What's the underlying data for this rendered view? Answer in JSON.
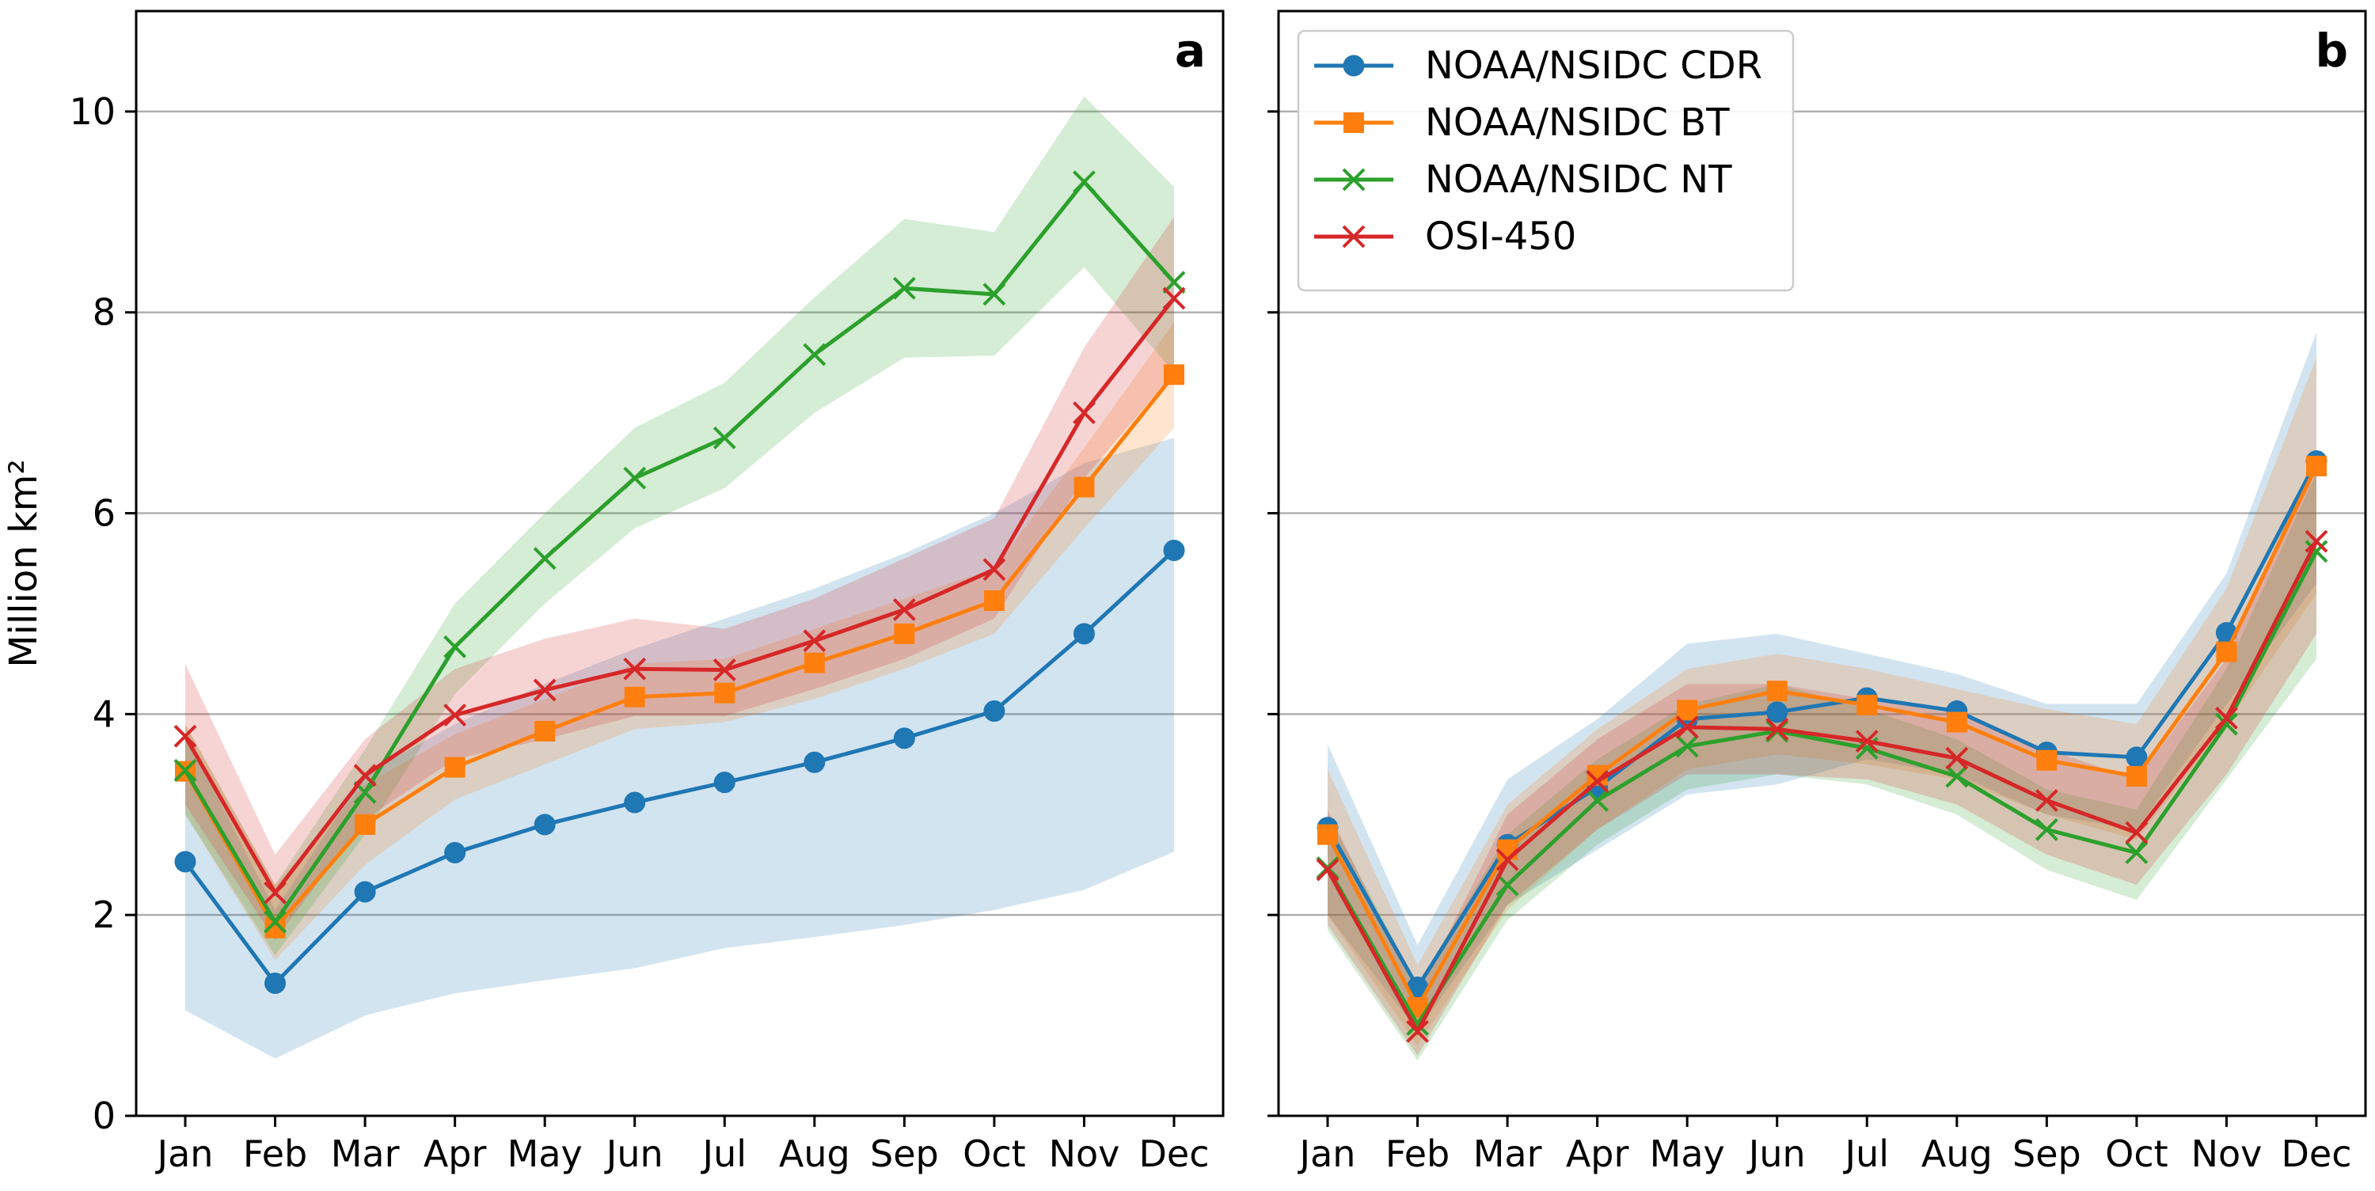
{
  "figure": {
    "ylabel": "Million km²",
    "series_styles": [
      {
        "name": "NOAA/NSIDC CDR",
        "color": "#1f77b4",
        "marker": "circle"
      },
      {
        "name": "NOAA/NSIDC BT",
        "color": "#ff7f0e",
        "marker": "square"
      },
      {
        "name": "NOAA/NSIDC NT",
        "color": "#2ca02c",
        "marker": "x"
      },
      {
        "name": "OSI-450",
        "color": "#d62728",
        "marker": "x"
      }
    ]
  },
  "chart_data": [
    {
      "panel": "a",
      "type": "line",
      "categories": [
        "Jan",
        "Feb",
        "Mar",
        "Apr",
        "May",
        "Jun",
        "Jul",
        "Aug",
        "Sep",
        "Oct",
        "Nov",
        "Dec"
      ],
      "ylim": [
        0,
        11
      ],
      "yticks": [
        0,
        2,
        4,
        6,
        8,
        10
      ],
      "grid": "horizontal",
      "legend": null,
      "series": [
        {
          "name": "NOAA/NSIDC CDR",
          "values": [
            2.53,
            1.32,
            2.23,
            2.62,
            2.9,
            3.12,
            3.32,
            3.52,
            3.76,
            4.03,
            4.8,
            5.63
          ],
          "lower": [
            1.05,
            0.57,
            1.0,
            1.22,
            1.35,
            1.47,
            1.67,
            1.78,
            1.9,
            2.05,
            2.25,
            2.63
          ],
          "upper": [
            3.8,
            2.05,
            3.4,
            3.9,
            4.3,
            4.65,
            4.95,
            5.25,
            5.6,
            6.0,
            6.5,
            6.75
          ]
        },
        {
          "name": "NOAA/NSIDC BT",
          "values": [
            3.43,
            1.87,
            2.9,
            3.47,
            3.83,
            4.17,
            4.21,
            4.51,
            4.8,
            5.13,
            6.26,
            7.38
          ],
          "lower": [
            3.0,
            1.55,
            2.5,
            3.15,
            3.5,
            3.85,
            3.92,
            4.15,
            4.45,
            4.8,
            5.85,
            6.85
          ],
          "upper": [
            3.9,
            2.3,
            3.3,
            3.8,
            4.15,
            4.5,
            4.55,
            4.85,
            5.15,
            5.45,
            6.65,
            7.9
          ]
        },
        {
          "name": "NOAA/NSIDC NT",
          "values": [
            3.44,
            1.93,
            3.22,
            4.67,
            5.55,
            6.35,
            6.75,
            7.58,
            8.24,
            8.18,
            9.3,
            8.3
          ],
          "lower": [
            3.0,
            1.6,
            2.8,
            4.2,
            5.1,
            5.85,
            6.25,
            7.0,
            7.55,
            7.57,
            8.45,
            7.4
          ],
          "upper": [
            3.9,
            2.3,
            3.65,
            5.1,
            6.0,
            6.85,
            7.3,
            8.15,
            8.93,
            8.8,
            10.15,
            9.25
          ]
        },
        {
          "name": "OSI-450",
          "values": [
            3.78,
            2.22,
            3.39,
            3.99,
            4.24,
            4.45,
            4.44,
            4.73,
            5.04,
            5.44,
            7.0,
            8.14
          ],
          "lower": [
            3.1,
            1.75,
            2.95,
            3.55,
            3.75,
            3.98,
            3.98,
            4.25,
            4.55,
            4.95,
            6.35,
            7.4
          ],
          "upper": [
            4.5,
            2.6,
            3.75,
            4.45,
            4.75,
            4.95,
            4.85,
            5.15,
            5.55,
            5.95,
            7.65,
            8.95
          ]
        }
      ]
    },
    {
      "panel": "b",
      "type": "line",
      "categories": [
        "Jan",
        "Feb",
        "Mar",
        "Apr",
        "May",
        "Jun",
        "Jul",
        "Aug",
        "Sep",
        "Oct",
        "Nov",
        "Dec"
      ],
      "ylim": [
        0,
        11
      ],
      "yticks": [
        0,
        2,
        4,
        6,
        8,
        10
      ],
      "grid": "horizontal",
      "legend": "top-left",
      "series": [
        {
          "name": "NOAA/NSIDC CDR",
          "values": [
            2.87,
            1.28,
            2.7,
            3.27,
            3.95,
            4.02,
            4.16,
            4.03,
            3.62,
            3.57,
            4.81,
            6.52
          ],
          "lower": [
            2.0,
            0.85,
            2.1,
            2.65,
            3.2,
            3.3,
            3.55,
            3.4,
            3.0,
            2.85,
            4.1,
            5.3
          ],
          "upper": [
            3.7,
            1.7,
            3.35,
            3.95,
            4.7,
            4.8,
            4.6,
            4.4,
            4.1,
            4.1,
            5.4,
            7.8
          ]
        },
        {
          "name": "NOAA/NSIDC BT",
          "values": [
            2.8,
            1.08,
            2.65,
            3.39,
            4.04,
            4.23,
            4.09,
            3.92,
            3.54,
            3.38,
            4.62,
            6.47
          ],
          "lower": [
            2.0,
            0.7,
            2.05,
            2.85,
            3.45,
            3.6,
            3.5,
            3.35,
            3.0,
            2.75,
            3.9,
            5.2
          ],
          "upper": [
            3.45,
            1.5,
            3.1,
            3.85,
            4.45,
            4.6,
            4.45,
            4.25,
            4.05,
            3.9,
            5.25,
            7.55
          ]
        },
        {
          "name": "NOAA/NSIDC NT",
          "values": [
            2.47,
            0.91,
            2.3,
            3.14,
            3.68,
            3.83,
            3.66,
            3.38,
            2.85,
            2.62,
            3.9,
            5.62
          ],
          "lower": [
            1.85,
            0.55,
            1.95,
            2.7,
            3.25,
            3.4,
            3.3,
            3.0,
            2.45,
            2.15,
            3.35,
            4.55
          ],
          "upper": [
            3.0,
            1.3,
            2.8,
            3.55,
            4.1,
            4.3,
            4.05,
            3.75,
            3.25,
            3.05,
            4.45,
            6.4
          ]
        },
        {
          "name": "OSI-450",
          "values": [
            2.45,
            0.84,
            2.55,
            3.33,
            3.87,
            3.85,
            3.73,
            3.56,
            3.14,
            2.82,
            3.96,
            5.72
          ],
          "lower": [
            1.9,
            0.6,
            2.1,
            2.85,
            3.4,
            3.4,
            3.35,
            3.1,
            2.6,
            2.3,
            3.4,
            4.8
          ],
          "upper": [
            3.05,
            1.2,
            3.0,
            3.75,
            4.3,
            4.3,
            4.15,
            4.0,
            3.65,
            3.35,
            4.55,
            6.6
          ]
        }
      ]
    }
  ]
}
